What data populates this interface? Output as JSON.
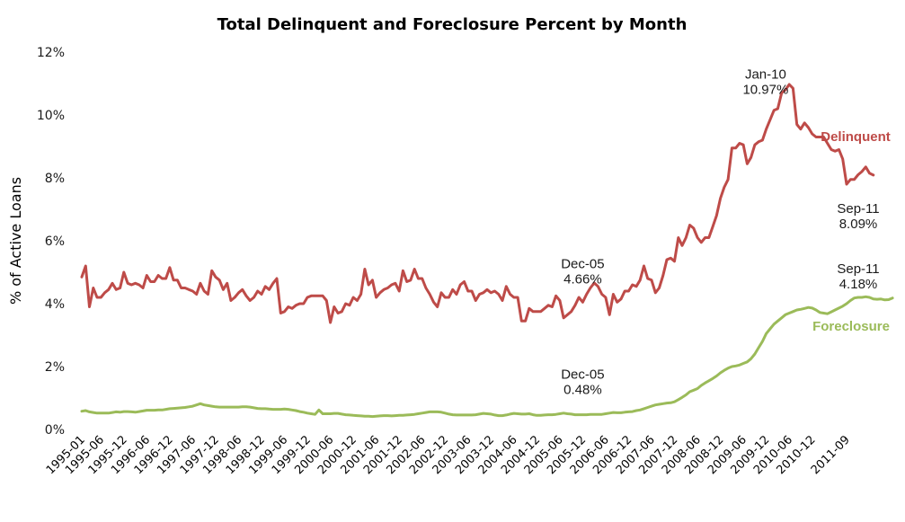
{
  "chart_data": {
    "type": "line",
    "title": "Total Delinquent and Foreclosure Percent by Month",
    "xlabel": "",
    "ylabel": "% of Active Loans",
    "ylim": [
      0,
      12
    ],
    "yticks": [
      "0%",
      "2%",
      "4%",
      "6%",
      "8%",
      "10%",
      "12%"
    ],
    "ytick_values": [
      0,
      2,
      4,
      6,
      8,
      10,
      12
    ],
    "grid": false,
    "legend": "inline labels at right end of each series",
    "x_start": "1995-01",
    "x_end": "2011-09",
    "xtick_labels": [
      "1995-01",
      "1995-06",
      "1995-12",
      "1996-06",
      "1996-12",
      "1997-06",
      "1997-12",
      "1998-06",
      "1998-12",
      "1999-06",
      "1999-12",
      "2000-06",
      "2000-12",
      "2001-06",
      "2001-12",
      "2002-06",
      "2002-12",
      "2003-06",
      "2003-12",
      "2004-06",
      "2004-12",
      "2005-06",
      "2005-12",
      "2006-06",
      "2006-12",
      "2007-06",
      "2007-12",
      "2008-06",
      "2008-12",
      "2009-06",
      "2009-12",
      "2010-06",
      "2010-12",
      "2011-09"
    ],
    "series": [
      {
        "name": "Delinquent",
        "color": "#BE4B48",
        "values": [
          4.85,
          5.2,
          3.9,
          4.5,
          4.2,
          4.2,
          4.35,
          4.45,
          4.65,
          4.45,
          4.5,
          5.0,
          4.65,
          4.6,
          4.65,
          4.6,
          4.5,
          4.9,
          4.7,
          4.7,
          4.9,
          4.8,
          4.8,
          5.15,
          4.75,
          4.75,
          4.5,
          4.5,
          4.45,
          4.4,
          4.3,
          4.65,
          4.4,
          4.3,
          5.05,
          4.85,
          4.75,
          4.45,
          4.65,
          4.1,
          4.2,
          4.35,
          4.45,
          4.25,
          4.1,
          4.2,
          4.4,
          4.3,
          4.55,
          4.45,
          4.65,
          4.8,
          3.7,
          3.75,
          3.9,
          3.85,
          3.95,
          4.0,
          4.0,
          4.2,
          4.25,
          4.25,
          4.25,
          4.25,
          4.1,
          3.4,
          3.9,
          3.7,
          3.75,
          4.0,
          3.95,
          4.2,
          4.1,
          4.3,
          5.1,
          4.6,
          4.75,
          4.2,
          4.35,
          4.45,
          4.5,
          4.6,
          4.65,
          4.4,
          5.05,
          4.7,
          4.75,
          5.1,
          4.8,
          4.8,
          4.5,
          4.3,
          4.05,
          3.9,
          4.35,
          4.2,
          4.2,
          4.45,
          4.3,
          4.6,
          4.7,
          4.4,
          4.4,
          4.1,
          4.3,
          4.35,
          4.45,
          4.35,
          4.4,
          4.3,
          4.1,
          4.55,
          4.3,
          4.2,
          4.2,
          3.45,
          3.45,
          3.85,
          3.75,
          3.75,
          3.75,
          3.85,
          3.95,
          3.9,
          4.25,
          4.1,
          3.55,
          3.65,
          3.75,
          3.95,
          4.2,
          4.05,
          4.3,
          4.5,
          4.66,
          4.55,
          4.3,
          4.2,
          3.65,
          4.3,
          4.05,
          4.15,
          4.4,
          4.4,
          4.6,
          4.55,
          4.75,
          5.2,
          4.8,
          4.75,
          4.35,
          4.5,
          4.9,
          5.4,
          5.45,
          5.35,
          6.1,
          5.85,
          6.1,
          6.5,
          6.4,
          6.1,
          5.95,
          6.1,
          6.1,
          6.45,
          6.8,
          7.35,
          7.7,
          7.95,
          8.95,
          8.95,
          9.1,
          9.05,
          8.45,
          8.65,
          9.05,
          9.15,
          9.2,
          9.55,
          9.85,
          10.15,
          10.2,
          10.7,
          10.8,
          10.97,
          10.85,
          9.7,
          9.55,
          9.75,
          9.6,
          9.4,
          9.3,
          9.3,
          9.3,
          9.1,
          8.9,
          8.85,
          8.9,
          8.6,
          7.8,
          7.95,
          7.95,
          8.1,
          8.2,
          8.35,
          8.15,
          8.09
        ]
      },
      {
        "name": "Foreclosure",
        "color": "#9BBB59",
        "values": [
          0.58,
          0.6,
          0.56,
          0.54,
          0.52,
          0.52,
          0.52,
          0.52,
          0.54,
          0.56,
          0.55,
          0.57,
          0.57,
          0.56,
          0.55,
          0.57,
          0.59,
          0.61,
          0.61,
          0.61,
          0.62,
          0.62,
          0.64,
          0.66,
          0.67,
          0.68,
          0.69,
          0.7,
          0.72,
          0.74,
          0.78,
          0.82,
          0.78,
          0.76,
          0.74,
          0.72,
          0.71,
          0.71,
          0.71,
          0.71,
          0.71,
          0.71,
          0.72,
          0.72,
          0.71,
          0.69,
          0.67,
          0.66,
          0.66,
          0.65,
          0.64,
          0.64,
          0.64,
          0.65,
          0.64,
          0.62,
          0.6,
          0.57,
          0.55,
          0.52,
          0.5,
          0.48,
          0.62,
          0.5,
          0.5,
          0.5,
          0.51,
          0.51,
          0.49,
          0.47,
          0.46,
          0.45,
          0.44,
          0.43,
          0.42,
          0.42,
          0.41,
          0.42,
          0.43,
          0.44,
          0.44,
          0.43,
          0.44,
          0.45,
          0.45,
          0.46,
          0.47,
          0.48,
          0.5,
          0.52,
          0.54,
          0.56,
          0.56,
          0.56,
          0.55,
          0.52,
          0.49,
          0.47,
          0.46,
          0.46,
          0.46,
          0.46,
          0.46,
          0.47,
          0.49,
          0.51,
          0.5,
          0.49,
          0.46,
          0.44,
          0.44,
          0.46,
          0.49,
          0.51,
          0.5,
          0.49,
          0.49,
          0.5,
          0.47,
          0.45,
          0.45,
          0.46,
          0.47,
          0.47,
          0.48,
          0.5,
          0.52,
          0.5,
          0.49,
          0.47,
          0.47,
          0.47,
          0.47,
          0.48,
          0.48,
          0.48,
          0.48,
          0.5,
          0.52,
          0.54,
          0.53,
          0.53,
          0.55,
          0.56,
          0.57,
          0.6,
          0.62,
          0.66,
          0.7,
          0.74,
          0.78,
          0.8,
          0.82,
          0.84,
          0.85,
          0.88,
          0.95,
          1.02,
          1.1,
          1.2,
          1.25,
          1.3,
          1.4,
          1.48,
          1.55,
          1.62,
          1.7,
          1.8,
          1.88,
          1.95,
          2.0,
          2.02,
          2.05,
          2.1,
          2.15,
          2.25,
          2.4,
          2.6,
          2.8,
          3.05,
          3.2,
          3.35,
          3.45,
          3.55,
          3.65,
          3.7,
          3.75,
          3.8,
          3.82,
          3.85,
          3.88,
          3.86,
          3.8,
          3.72,
          3.7,
          3.68,
          3.74,
          3.8,
          3.86,
          3.92,
          4.0,
          4.1,
          4.18,
          4.2,
          4.2,
          4.22,
          4.2,
          4.15,
          4.14,
          4.15,
          4.12,
          4.13,
          4.18
        ]
      }
    ],
    "annotations": [
      {
        "series": "Delinquent",
        "date": "2005-12",
        "label_top": "Dec-05",
        "label_bottom": "4.66%"
      },
      {
        "series": "Delinquent",
        "date": "2010-01",
        "label_top": "Jan-10",
        "label_bottom": "10.97%"
      },
      {
        "series": "Delinquent",
        "date": "2011-09",
        "label_top": "Sep-11",
        "label_bottom": "8.09%"
      },
      {
        "series": "Foreclosure",
        "date": "2005-12",
        "label_top": "Dec-05",
        "label_bottom": "0.48%"
      },
      {
        "series": "Foreclosure",
        "date": "2011-09",
        "label_top": "Sep-11",
        "label_bottom": "4.18%"
      }
    ]
  }
}
